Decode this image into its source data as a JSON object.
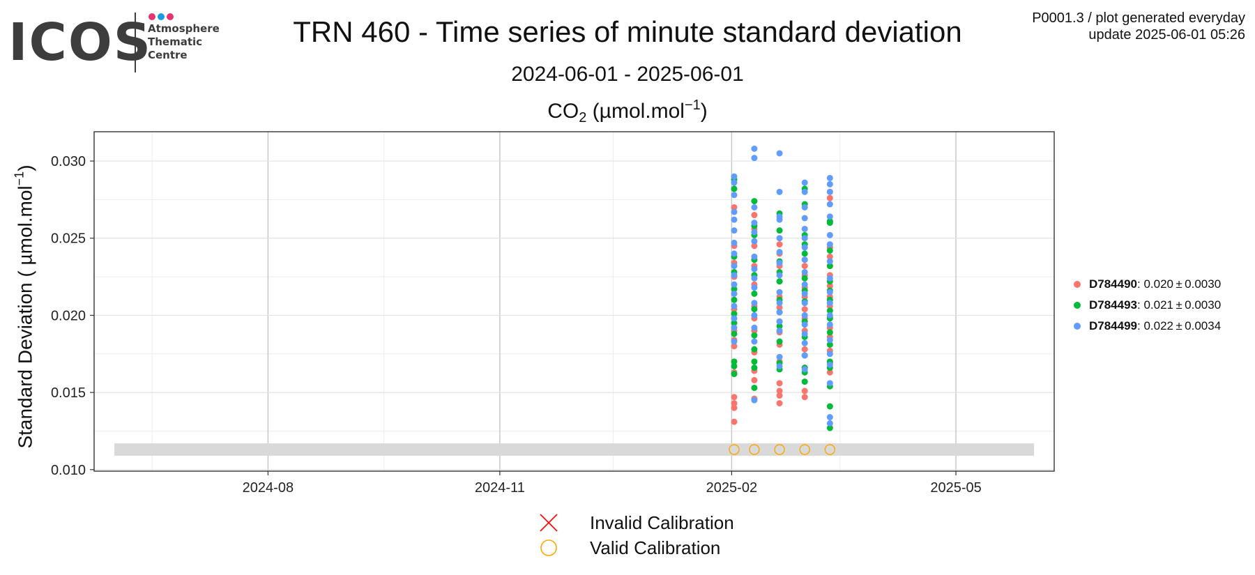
{
  "logo": {
    "wordmark": "ICOS",
    "lines": [
      "Atmosphere",
      "Thematic",
      "Centre"
    ],
    "dot_colors": [
      "#e8336f",
      "#1b9ce2",
      "#e8336f"
    ],
    "text_color": "#3d3d3d"
  },
  "header": {
    "title": "TRN 460 - Time series of minute standard deviation",
    "date_range": "2024-06-01 - 2025-06-01",
    "gas_name": "CO",
    "gas_subscript": "2",
    "gas_unit_open": "(µmol.mol",
    "gas_unit_exp": "−1",
    "gas_unit_close": ")",
    "plot_id": "P0001.3 / plot generated everyday",
    "update": "update  2025-06-01 05:26"
  },
  "y_axis_title": {
    "text": "Standard Deviation ( µmol.mol",
    "exp": "−1",
    "close": ")"
  },
  "chart_data": {
    "type": "scatter",
    "title": "TRN 460 - Time series of minute standard deviation",
    "ylabel": "Standard Deviation ( µmol.mol−1)",
    "xlabel": "",
    "x_ticks": [
      "2024-08-01",
      "2024-11-01",
      "2025-02-01",
      "2025-05-01"
    ],
    "x_tick_labels": [
      "2024-08",
      "2024-11",
      "2025-02",
      "2025-05"
    ],
    "y_ticks": [
      0.01,
      0.015,
      0.02,
      0.025,
      0.03
    ],
    "y_tick_labels": [
      "0.010",
      "0.015",
      "0.020",
      "0.025",
      "0.030"
    ],
    "xlim": [
      "2024-06-01",
      "2025-06-01"
    ],
    "ylim": [
      0.0099,
      0.0319
    ],
    "grid": true,
    "legend_position": "right",
    "band": {
      "y_range": [
        0.0109,
        0.0117
      ],
      "color": "#d9d9d9"
    },
    "calibrations": {
      "valid_dates": [
        "2025-02-02",
        "2025-02-10",
        "2025-02-20",
        "2025-03-02",
        "2025-03-12"
      ],
      "invalid_dates": [],
      "y": 0.0113
    },
    "series": [
      {
        "name": "D784490",
        "color": "#f8766d",
        "stats": {
          "mean": "0.020",
          "sd": "0.0030"
        },
        "points": [
          [
            "2025-02-02",
            0.0131
          ],
          [
            "2025-02-02",
            0.014
          ],
          [
            "2025-02-02",
            0.0143
          ],
          [
            "2025-02-02",
            0.0147
          ],
          [
            "2025-02-02",
            0.0163
          ],
          [
            "2025-02-02",
            0.018
          ],
          [
            "2025-02-02",
            0.0184
          ],
          [
            "2025-02-02",
            0.019
          ],
          [
            "2025-02-02",
            0.0204
          ],
          [
            "2025-02-02",
            0.0214
          ],
          [
            "2025-02-02",
            0.0225
          ],
          [
            "2025-02-02",
            0.0234
          ],
          [
            "2025-02-02",
            0.0245
          ],
          [
            "2025-02-02",
            0.027
          ],
          [
            "2025-02-10",
            0.0146
          ],
          [
            "2025-02-10",
            0.0158
          ],
          [
            "2025-02-10",
            0.0164
          ],
          [
            "2025-02-10",
            0.0176
          ],
          [
            "2025-02-10",
            0.019
          ],
          [
            "2025-02-10",
            0.0198
          ],
          [
            "2025-02-10",
            0.0206
          ],
          [
            "2025-02-10",
            0.022
          ],
          [
            "2025-02-10",
            0.0232
          ],
          [
            "2025-02-10",
            0.0245
          ],
          [
            "2025-02-10",
            0.0256
          ],
          [
            "2025-02-10",
            0.0265
          ],
          [
            "2025-02-20",
            0.0143
          ],
          [
            "2025-02-20",
            0.0148
          ],
          [
            "2025-02-20",
            0.0151
          ],
          [
            "2025-02-20",
            0.0156
          ],
          [
            "2025-02-20",
            0.017
          ],
          [
            "2025-02-20",
            0.0181
          ],
          [
            "2025-02-20",
            0.0189
          ],
          [
            "2025-02-20",
            0.0196
          ],
          [
            "2025-02-20",
            0.0205
          ],
          [
            "2025-02-20",
            0.0212
          ],
          [
            "2025-02-20",
            0.0222
          ],
          [
            "2025-02-20",
            0.0232
          ],
          [
            "2025-02-20",
            0.024
          ],
          [
            "2025-02-20",
            0.0246
          ],
          [
            "2025-03-02",
            0.0147
          ],
          [
            "2025-03-02",
            0.0151
          ],
          [
            "2025-03-02",
            0.0166
          ],
          [
            "2025-03-02",
            0.0178
          ],
          [
            "2025-03-02",
            0.019
          ],
          [
            "2025-03-02",
            0.0198
          ],
          [
            "2025-03-02",
            0.0204
          ],
          [
            "2025-03-02",
            0.0212
          ],
          [
            "2025-03-02",
            0.0218
          ],
          [
            "2025-03-02",
            0.0226
          ],
          [
            "2025-03-02",
            0.0232
          ],
          [
            "2025-03-02",
            0.0236
          ],
          [
            "2025-03-12",
            0.0163
          ],
          [
            "2025-03-12",
            0.0169
          ],
          [
            "2025-03-12",
            0.0177
          ],
          [
            "2025-03-12",
            0.0186
          ],
          [
            "2025-03-12",
            0.0192
          ],
          [
            "2025-03-12",
            0.0199
          ],
          [
            "2025-03-12",
            0.0206
          ],
          [
            "2025-03-12",
            0.0212
          ],
          [
            "2025-03-12",
            0.0219
          ],
          [
            "2025-03-12",
            0.0226
          ],
          [
            "2025-03-12",
            0.0232
          ],
          [
            "2025-03-12",
            0.0238
          ],
          [
            "2025-03-12",
            0.0244
          ],
          [
            "2025-03-12",
            0.0276
          ],
          [
            "2025-03-12",
            0.028
          ]
        ]
      },
      {
        "name": "D784493",
        "color": "#00ba38",
        "stats": {
          "mean": "0.021",
          "sd": "0.0030"
        },
        "points": [
          [
            "2025-02-02",
            0.0162
          ],
          [
            "2025-02-02",
            0.0167
          ],
          [
            "2025-02-02",
            0.017
          ],
          [
            "2025-02-02",
            0.0188
          ],
          [
            "2025-02-02",
            0.0195
          ],
          [
            "2025-02-02",
            0.0201
          ],
          [
            "2025-02-02",
            0.021
          ],
          [
            "2025-02-02",
            0.0217
          ],
          [
            "2025-02-02",
            0.0228
          ],
          [
            "2025-02-02",
            0.0238
          ],
          [
            "2025-02-02",
            0.0282
          ],
          [
            "2025-02-02",
            0.0288
          ],
          [
            "2025-02-10",
            0.0153
          ],
          [
            "2025-02-10",
            0.0166
          ],
          [
            "2025-02-10",
            0.017
          ],
          [
            "2025-02-10",
            0.0178
          ],
          [
            "2025-02-10",
            0.0187
          ],
          [
            "2025-02-10",
            0.0204
          ],
          [
            "2025-02-10",
            0.0214
          ],
          [
            "2025-02-10",
            0.0226
          ],
          [
            "2025-02-10",
            0.0236
          ],
          [
            "2025-02-10",
            0.0252
          ],
          [
            "2025-02-10",
            0.0258
          ],
          [
            "2025-02-10",
            0.0274
          ],
          [
            "2025-02-20",
            0.0165
          ],
          [
            "2025-02-20",
            0.0169
          ],
          [
            "2025-02-20",
            0.0183
          ],
          [
            "2025-02-20",
            0.0193
          ],
          [
            "2025-02-20",
            0.0202
          ],
          [
            "2025-02-20",
            0.021
          ],
          [
            "2025-02-20",
            0.0222
          ],
          [
            "2025-02-20",
            0.0228
          ],
          [
            "2025-02-20",
            0.0235
          ],
          [
            "2025-02-20",
            0.0255
          ],
          [
            "2025-02-20",
            0.0266
          ],
          [
            "2025-03-02",
            0.0157
          ],
          [
            "2025-03-02",
            0.0163
          ],
          [
            "2025-03-02",
            0.0166
          ],
          [
            "2025-03-02",
            0.0174
          ],
          [
            "2025-03-02",
            0.0186
          ],
          [
            "2025-03-02",
            0.0196
          ],
          [
            "2025-03-02",
            0.0209
          ],
          [
            "2025-03-02",
            0.0216
          ],
          [
            "2025-03-02",
            0.0224
          ],
          [
            "2025-03-02",
            0.024
          ],
          [
            "2025-03-02",
            0.0246
          ],
          [
            "2025-03-02",
            0.0252
          ],
          [
            "2025-03-02",
            0.0272
          ],
          [
            "2025-03-02",
            0.0282
          ],
          [
            "2025-03-12",
            0.0127
          ],
          [
            "2025-03-12",
            0.0141
          ],
          [
            "2025-03-12",
            0.0154
          ],
          [
            "2025-03-12",
            0.0166
          ],
          [
            "2025-03-12",
            0.017
          ],
          [
            "2025-03-12",
            0.0181
          ],
          [
            "2025-03-12",
            0.0189
          ],
          [
            "2025-03-12",
            0.0198
          ],
          [
            "2025-03-12",
            0.0203
          ],
          [
            "2025-03-12",
            0.021
          ],
          [
            "2025-03-12",
            0.0216
          ],
          [
            "2025-03-12",
            0.0222
          ],
          [
            "2025-03-12",
            0.0232
          ],
          [
            "2025-03-12",
            0.0242
          ],
          [
            "2025-03-12",
            0.026
          ],
          [
            "2025-03-12",
            0.0261
          ]
        ]
      },
      {
        "name": "D784499",
        "color": "#619cff",
        "stats": {
          "mean": "0.022",
          "sd": "0.0034"
        },
        "points": [
          [
            "2025-02-02",
            0.0183
          ],
          [
            "2025-02-02",
            0.0192
          ],
          [
            "2025-02-02",
            0.0198
          ],
          [
            "2025-02-02",
            0.0206
          ],
          [
            "2025-02-02",
            0.0214
          ],
          [
            "2025-02-02",
            0.022
          ],
          [
            "2025-02-02",
            0.0226
          ],
          [
            "2025-02-02",
            0.0232
          ],
          [
            "2025-02-02",
            0.024
          ],
          [
            "2025-02-02",
            0.0247
          ],
          [
            "2025-02-02",
            0.0255
          ],
          [
            "2025-02-02",
            0.0262
          ],
          [
            "2025-02-02",
            0.0267
          ],
          [
            "2025-02-02",
            0.0278
          ],
          [
            "2025-02-02",
            0.0286
          ],
          [
            "2025-02-02",
            0.029
          ],
          [
            "2025-02-10",
            0.0145
          ],
          [
            "2025-02-10",
            0.0183
          ],
          [
            "2025-02-10",
            0.0192
          ],
          [
            "2025-02-10",
            0.02
          ],
          [
            "2025-02-10",
            0.0208
          ],
          [
            "2025-02-10",
            0.0218
          ],
          [
            "2025-02-10",
            0.0224
          ],
          [
            "2025-02-10",
            0.023
          ],
          [
            "2025-02-10",
            0.0238
          ],
          [
            "2025-02-10",
            0.0248
          ],
          [
            "2025-02-10",
            0.0254
          ],
          [
            "2025-02-10",
            0.026
          ],
          [
            "2025-02-10",
            0.027
          ],
          [
            "2025-02-10",
            0.0302
          ],
          [
            "2025-02-10",
            0.0308
          ],
          [
            "2025-02-20",
            0.0167
          ],
          [
            "2025-02-20",
            0.0173
          ],
          [
            "2025-02-20",
            0.019
          ],
          [
            "2025-02-20",
            0.0196
          ],
          [
            "2025-02-20",
            0.0202
          ],
          [
            "2025-02-20",
            0.0208
          ],
          [
            "2025-02-20",
            0.0215
          ],
          [
            "2025-02-20",
            0.0226
          ],
          [
            "2025-02-20",
            0.0234
          ],
          [
            "2025-02-20",
            0.0241
          ],
          [
            "2025-02-20",
            0.025
          ],
          [
            "2025-02-20",
            0.0262
          ],
          [
            "2025-02-20",
            0.0264
          ],
          [
            "2025-02-20",
            0.028
          ],
          [
            "2025-02-20",
            0.0305
          ],
          [
            "2025-03-02",
            0.0165
          ],
          [
            "2025-03-02",
            0.0174
          ],
          [
            "2025-03-02",
            0.0182
          ],
          [
            "2025-03-02",
            0.0188
          ],
          [
            "2025-03-02",
            0.0194
          ],
          [
            "2025-03-02",
            0.02
          ],
          [
            "2025-03-02",
            0.0208
          ],
          [
            "2025-03-02",
            0.0214
          ],
          [
            "2025-03-02",
            0.022
          ],
          [
            "2025-03-02",
            0.0228
          ],
          [
            "2025-03-02",
            0.0236
          ],
          [
            "2025-03-02",
            0.0244
          ],
          [
            "2025-03-02",
            0.025
          ],
          [
            "2025-03-02",
            0.0256
          ],
          [
            "2025-03-02",
            0.0263
          ],
          [
            "2025-03-02",
            0.027
          ],
          [
            "2025-03-02",
            0.028
          ],
          [
            "2025-03-02",
            0.0286
          ],
          [
            "2025-03-12",
            0.013
          ],
          [
            "2025-03-12",
            0.0134
          ],
          [
            "2025-03-12",
            0.0156
          ],
          [
            "2025-03-12",
            0.0168
          ],
          [
            "2025-03-12",
            0.0175
          ],
          [
            "2025-03-12",
            0.0184
          ],
          [
            "2025-03-12",
            0.0194
          ],
          [
            "2025-03-12",
            0.02
          ],
          [
            "2025-03-12",
            0.0208
          ],
          [
            "2025-03-12",
            0.0215
          ],
          [
            "2025-03-12",
            0.0224
          ],
          [
            "2025-03-12",
            0.0235
          ],
          [
            "2025-03-12",
            0.0246
          ],
          [
            "2025-03-12",
            0.0252
          ],
          [
            "2025-03-12",
            0.0264
          ],
          [
            "2025-03-12",
            0.0272
          ],
          [
            "2025-03-12",
            0.028
          ],
          [
            "2025-03-12",
            0.0285
          ],
          [
            "2025-03-12",
            0.0289
          ]
        ]
      }
    ]
  },
  "calibration_legend": {
    "invalid_label": "Invalid Calibration",
    "valid_label": "Valid Calibration",
    "invalid_color": "#ff0000",
    "valid_color": "#ffa500"
  }
}
